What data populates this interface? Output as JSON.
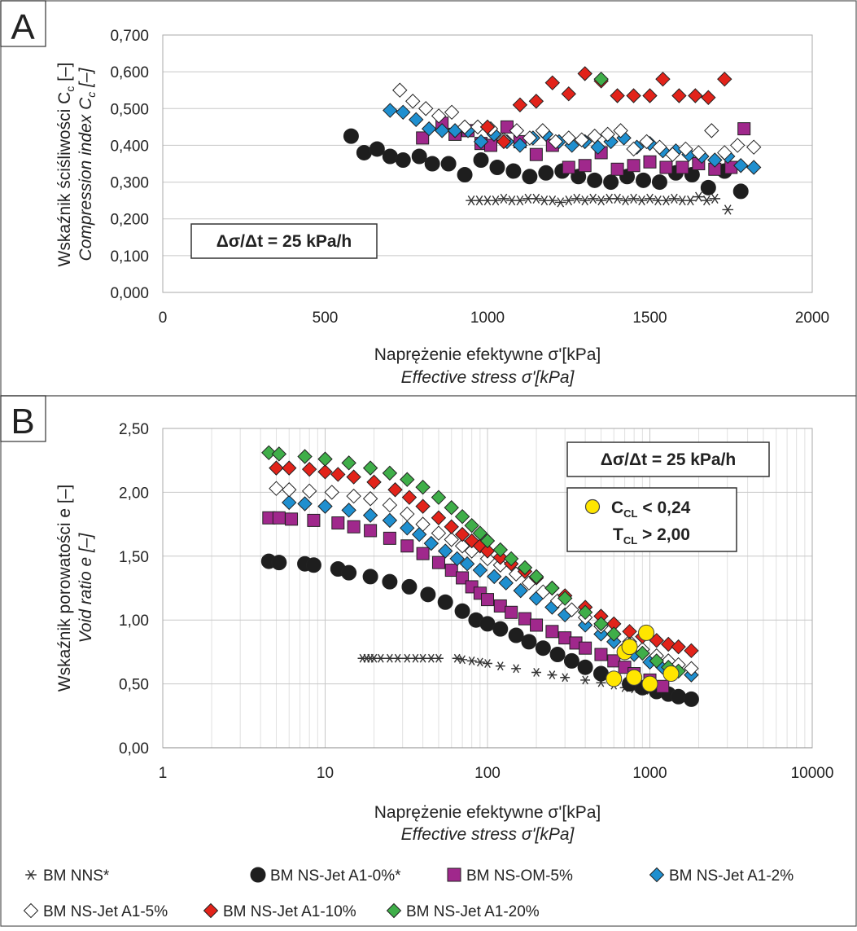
{
  "panels": {
    "a": {
      "letter": "A",
      "rate_box": "Δσ/Δt = 25 kPa/h",
      "ylabel_pl": "Wskaźnik ściśliwości C",
      "ylabel_pl_sub": "c",
      "ylabel_pl_suffix": " [–]",
      "ylabel_en": "Compression index C",
      "ylabel_en_sub": "c",
      "ylabel_en_suffix": " [–]",
      "xlabel_pl": "Naprężenie efektywne σ'[kPa]",
      "xlabel_en": "Effective stress σ'[kPa]"
    },
    "b": {
      "letter": "B",
      "rate_box": "Δσ/Δt = 25 kPa/h",
      "marker_legend": {
        "line1_main": "C",
        "line1_sub": "CL",
        "line1_rest": " < 0,24",
        "line2_main": "T",
        "line2_sub": "CL",
        "line2_rest": " > 2,00"
      },
      "ylabel_pl": "Wskaźnik porowatości e [–]",
      "ylabel_en": "Void ratio e [–]",
      "xlabel_pl": "Naprężenie efektywne σ'[kPa]",
      "xlabel_en": "Effective stress σ'[kPa]"
    }
  },
  "legend": [
    {
      "label": "BM NNS*",
      "marker": "star",
      "color": "#333333"
    },
    {
      "label": "BM NS-Jet A1-0%*",
      "marker": "circle",
      "color": "#1e1e1e"
    },
    {
      "label": "BM NS-OM-5%",
      "marker": "square",
      "color": "#a0288c"
    },
    {
      "label": "BM NS-Jet A1-2%",
      "marker": "diamond",
      "color": "#1f8fcf"
    },
    {
      "label": "BM NS-Jet A1-5%",
      "marker": "diamond-open",
      "color": "#ffffff"
    },
    {
      "label": "BM NS-Jet A1-10%",
      "marker": "diamond",
      "color": "#e2231a"
    },
    {
      "label": "BM NS-Jet A1-20%",
      "marker": "diamond",
      "color": "#3fae49"
    }
  ],
  "chart_data": [
    {
      "type": "scatter",
      "xlabel": "Naprężenie efektywne σ'[kPa] / Effective stress σ'[kPa]",
      "ylabel": "Wskaźnik ściśliwości Cc [–] / Compression index Cc [–]",
      "xlim": [
        0,
        2000
      ],
      "ylim": [
        0,
        0.7
      ],
      "xticks": [
        "0",
        "500",
        "1000",
        "1500",
        "2000"
      ],
      "yticks": [
        "0,000",
        "0,100",
        "0,200",
        "0,300",
        "0,400",
        "0,500",
        "0,600",
        "0,700"
      ],
      "grid": true,
      "series": [
        {
          "name": "BM NNS*",
          "x": [
            950,
            975,
            1000,
            1025,
            1050,
            1075,
            1100,
            1125,
            1150,
            1175,
            1200,
            1225,
            1250,
            1275,
            1300,
            1325,
            1350,
            1375,
            1400,
            1425,
            1450,
            1475,
            1500,
            1525,
            1550,
            1575,
            1600,
            1625,
            1650,
            1675,
            1700,
            1740
          ],
          "y": [
            0.25,
            0.25,
            0.25,
            0.25,
            0.255,
            0.25,
            0.25,
            0.255,
            0.255,
            0.25,
            0.25,
            0.245,
            0.25,
            0.255,
            0.25,
            0.255,
            0.25,
            0.255,
            0.255,
            0.25,
            0.255,
            0.25,
            0.255,
            0.25,
            0.25,
            0.255,
            0.25,
            0.25,
            0.26,
            0.25,
            0.255,
            0.225
          ]
        },
        {
          "name": "BM NS-Jet A1-0%*",
          "x": [
            580,
            620,
            660,
            700,
            740,
            790,
            830,
            880,
            930,
            980,
            1030,
            1080,
            1130,
            1180,
            1230,
            1280,
            1330,
            1380,
            1430,
            1480,
            1530,
            1580,
            1630,
            1680,
            1730,
            1780
          ],
          "y": [
            0.425,
            0.38,
            0.39,
            0.37,
            0.36,
            0.37,
            0.35,
            0.35,
            0.32,
            0.36,
            0.34,
            0.33,
            0.315,
            0.325,
            0.33,
            0.315,
            0.305,
            0.3,
            0.315,
            0.305,
            0.3,
            0.325,
            0.32,
            0.285,
            0.33,
            0.275
          ]
        },
        {
          "name": "BM NS-OM-5%",
          "x": [
            800,
            860,
            900,
            940,
            980,
            1010,
            1060,
            1100,
            1150,
            1200,
            1250,
            1300,
            1350,
            1400,
            1450,
            1500,
            1550,
            1600,
            1650,
            1700,
            1750,
            1790
          ],
          "y": [
            0.42,
            0.46,
            0.43,
            0.44,
            0.405,
            0.4,
            0.45,
            0.41,
            0.375,
            0.4,
            0.34,
            0.345,
            0.38,
            0.335,
            0.345,
            0.355,
            0.34,
            0.34,
            0.35,
            0.335,
            0.34,
            0.445
          ]
        },
        {
          "name": "BM NS-Jet A1-2%",
          "x": [
            700,
            740,
            780,
            820,
            860,
            900,
            940,
            980,
            1020,
            1060,
            1100,
            1140,
            1180,
            1220,
            1260,
            1300,
            1340,
            1380,
            1420,
            1460,
            1500,
            1540,
            1580,
            1620,
            1660,
            1700,
            1740,
            1780,
            1820
          ],
          "y": [
            0.495,
            0.49,
            0.47,
            0.445,
            0.44,
            0.44,
            0.44,
            0.41,
            0.43,
            0.41,
            0.4,
            0.42,
            0.43,
            0.41,
            0.4,
            0.41,
            0.395,
            0.41,
            0.42,
            0.395,
            0.405,
            0.385,
            0.385,
            0.375,
            0.37,
            0.36,
            0.37,
            0.345,
            0.34
          ]
        },
        {
          "name": "BM NS-Jet A1-5%",
          "x": [
            730,
            770,
            810,
            850,
            890,
            930,
            970,
            1010,
            1050,
            1090,
            1130,
            1170,
            1210,
            1250,
            1290,
            1330,
            1370,
            1410,
            1450,
            1490,
            1530,
            1570,
            1610,
            1650,
            1690,
            1730,
            1770,
            1820
          ],
          "y": [
            0.55,
            0.52,
            0.5,
            0.48,
            0.49,
            0.45,
            0.45,
            0.445,
            0.415,
            0.44,
            0.42,
            0.44,
            0.41,
            0.42,
            0.415,
            0.425,
            0.43,
            0.44,
            0.39,
            0.41,
            0.395,
            0.375,
            0.39,
            0.38,
            0.44,
            0.38,
            0.4,
            0.395
          ]
        },
        {
          "name": "BM NS-Jet A1-10%",
          "x": [
            1000,
            1050,
            1100,
            1150,
            1200,
            1250,
            1300,
            1350,
            1400,
            1450,
            1500,
            1540,
            1590,
            1640,
            1680,
            1730
          ],
          "y": [
            0.45,
            0.41,
            0.51,
            0.52,
            0.57,
            0.54,
            0.595,
            0.575,
            0.535,
            0.535,
            0.535,
            0.58,
            0.535,
            0.535,
            0.53,
            0.58
          ]
        },
        {
          "name": "BM NS-Jet A1-20%",
          "x": [
            1350
          ],
          "y": [
            0.58
          ]
        }
      ]
    },
    {
      "type": "scatter",
      "xlabel": "Naprężenie efektywne σ'[kPa] / Effective stress σ'[kPa]",
      "ylabel": "Wskaźnik porowatości e [–] / Void ratio e [–]",
      "xscale": "log",
      "xlim": [
        1,
        10000
      ],
      "ylim": [
        0,
        2.5
      ],
      "xticks": [
        "1",
        "10",
        "100",
        "1000",
        "10000"
      ],
      "yticks": [
        "0,00",
        "0,50",
        "1,00",
        "1,50",
        "2,00",
        "2,50"
      ],
      "grid": true,
      "series": [
        {
          "name": "BM NNS*",
          "x": [
            17,
            18,
            19,
            20,
            22,
            25,
            28,
            32,
            36,
            40,
            45,
            50,
            65,
            70,
            80,
            90,
            100,
            120,
            150,
            200,
            250,
            300,
            400,
            500,
            600,
            700,
            800,
            1000
          ],
          "y": [
            0.7,
            0.7,
            0.7,
            0.7,
            0.7,
            0.7,
            0.7,
            0.7,
            0.7,
            0.7,
            0.7,
            0.7,
            0.7,
            0.69,
            0.68,
            0.67,
            0.66,
            0.64,
            0.62,
            0.59,
            0.57,
            0.55,
            0.53,
            0.51,
            0.49,
            0.47,
            0.46,
            0.45
          ]
        },
        {
          "name": "BM NS-Jet A1-0%*",
          "x": [
            4.5,
            5.2,
            7.5,
            8.5,
            12,
            14,
            19,
            25,
            33,
            43,
            55,
            70,
            85,
            100,
            120,
            150,
            180,
            220,
            270,
            330,
            400,
            500,
            600,
            750,
            900,
            1100,
            1300,
            1500,
            1800
          ],
          "y": [
            1.46,
            1.45,
            1.44,
            1.43,
            1.4,
            1.37,
            1.34,
            1.3,
            1.26,
            1.2,
            1.14,
            1.07,
            1.0,
            0.97,
            0.93,
            0.88,
            0.83,
            0.78,
            0.73,
            0.68,
            0.63,
            0.58,
            0.54,
            0.5,
            0.47,
            0.44,
            0.42,
            0.4,
            0.38
          ]
        },
        {
          "name": "BM NS-OM-5%",
          "x": [
            4.5,
            5.2,
            6.2,
            8.5,
            12,
            15,
            19,
            25,
            32,
            40,
            50,
            60,
            70,
            80,
            90,
            100,
            120,
            140,
            170,
            200,
            250,
            300,
            350,
            400,
            500,
            600,
            700,
            800,
            1000,
            1200
          ],
          "y": [
            1.8,
            1.8,
            1.79,
            1.78,
            1.76,
            1.73,
            1.7,
            1.64,
            1.58,
            1.52,
            1.45,
            1.39,
            1.33,
            1.26,
            1.21,
            1.16,
            1.11,
            1.06,
            1.01,
            0.96,
            0.91,
            0.86,
            0.82,
            0.78,
            0.73,
            0.68,
            0.63,
            0.58,
            0.53,
            0.48
          ]
        },
        {
          "name": "BM NS-Jet A1-2%",
          "x": [
            6,
            7.5,
            10,
            14,
            19,
            25,
            32,
            38,
            45,
            55,
            65,
            75,
            90,
            110,
            130,
            160,
            200,
            250,
            300,
            400,
            500,
            600,
            700,
            800,
            1000,
            1200,
            1400,
            1800
          ],
          "y": [
            1.92,
            1.91,
            1.89,
            1.86,
            1.82,
            1.78,
            1.72,
            1.67,
            1.6,
            1.54,
            1.48,
            1.44,
            1.39,
            1.34,
            1.29,
            1.23,
            1.17,
            1.1,
            1.04,
            0.96,
            0.89,
            0.83,
            0.78,
            0.73,
            0.67,
            0.63,
            0.6,
            0.57
          ]
        },
        {
          "name": "BM NS-Jet A1-5%",
          "x": [
            5,
            6,
            8,
            11,
            15,
            19,
            25,
            32,
            40,
            50,
            60,
            70,
            80,
            100,
            120,
            150,
            180,
            220,
            270,
            330,
            400,
            500,
            600,
            750,
            900,
            1100,
            1300,
            1500,
            1800
          ],
          "y": [
            2.03,
            2.02,
            2.01,
            2.0,
            1.97,
            1.95,
            1.9,
            1.83,
            1.75,
            1.68,
            1.63,
            1.58,
            1.54,
            1.48,
            1.43,
            1.36,
            1.29,
            1.22,
            1.15,
            1.08,
            1.02,
            0.95,
            0.89,
            0.83,
            0.77,
            0.72,
            0.68,
            0.65,
            0.62
          ]
        },
        {
          "name": "BM NS-Jet A1-10%",
          "x": [
            5,
            6,
            8,
            10,
            12,
            15,
            20,
            27,
            33,
            40,
            50,
            60,
            70,
            80,
            90,
            100,
            120,
            140,
            170,
            200,
            250,
            300,
            400,
            500,
            600,
            750,
            900,
            1100,
            1300,
            1500,
            1800
          ],
          "y": [
            2.19,
            2.19,
            2.18,
            2.16,
            2.14,
            2.12,
            2.08,
            2.02,
            1.96,
            1.89,
            1.8,
            1.73,
            1.67,
            1.62,
            1.58,
            1.54,
            1.49,
            1.44,
            1.38,
            1.33,
            1.25,
            1.19,
            1.1,
            1.03,
            0.97,
            0.91,
            0.87,
            0.84,
            0.81,
            0.79,
            0.76
          ]
        },
        {
          "name": "BM NS-Jet A1-20%",
          "x": [
            4.5,
            5.2,
            7.5,
            10,
            14,
            19,
            25,
            32,
            40,
            50,
            60,
            70,
            80,
            90,
            100,
            120,
            140,
            170,
            200,
            250,
            300,
            400,
            500,
            600,
            750,
            900,
            1100,
            1300,
            1500
          ],
          "y": [
            2.31,
            2.3,
            2.28,
            2.26,
            2.23,
            2.19,
            2.15,
            2.1,
            2.04,
            1.96,
            1.88,
            1.81,
            1.74,
            1.68,
            1.62,
            1.55,
            1.48,
            1.41,
            1.34,
            1.25,
            1.17,
            1.06,
            0.97,
            0.89,
            0.81,
            0.74,
            0.68,
            0.63,
            0.6
          ]
        },
        {
          "name": "CCL < 0,24 TCL > 2,00",
          "x": [
            600,
            800,
            700,
            1000,
            950,
            1350,
            750
          ],
          "y": [
            0.54,
            0.55,
            0.75,
            0.5,
            0.9,
            0.58,
            0.79
          ]
        }
      ]
    }
  ]
}
